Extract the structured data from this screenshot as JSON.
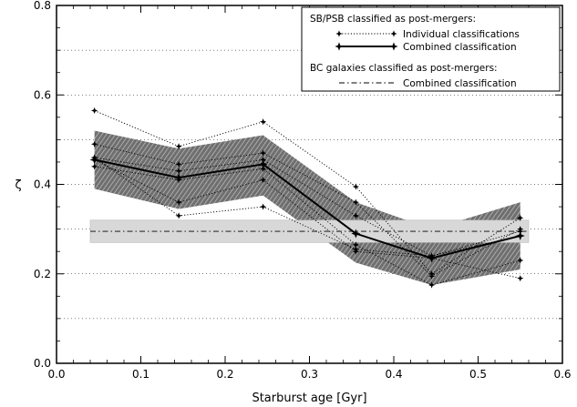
{
  "chart_data": {
    "type": "line",
    "title": "",
    "xlabel": "Starburst age [Gyr]",
    "ylabel": "ζ",
    "xlim": [
      0.0,
      0.6
    ],
    "ylim": [
      0.0,
      0.8
    ],
    "x_ticks": [
      "0.0",
      "0.1",
      "0.2",
      "0.3",
      "0.4",
      "0.5",
      "0.6"
    ],
    "y_ticks": [
      "0.0",
      "0.2",
      "0.4",
      "0.6",
      "0.8"
    ],
    "grid": "horizontal dotted",
    "legend_placement": "top-right",
    "legend": {
      "heading_sb": "SB/PSB classified as post-mergers:",
      "entry_individual": "Individual classifications",
      "entry_combined": "Combined classification",
      "heading_bc": "BC galaxies classified as post-mergers:",
      "entry_bc": "Combined classification"
    },
    "x": [
      0.045,
      0.145,
      0.245,
      0.355,
      0.445,
      0.55
    ],
    "individual_series": [
      [
        0.565,
        0.485,
        0.54,
        0.395,
        0.2,
        0.325
      ],
      [
        0.49,
        0.445,
        0.47,
        0.36,
        0.195,
        0.3
      ],
      [
        0.46,
        0.43,
        0.455,
        0.33,
        0.24,
        0.285
      ],
      [
        0.44,
        0.41,
        0.435,
        0.265,
        0.175,
        0.23
      ],
      [
        0.455,
        0.36,
        0.41,
        0.25,
        0.235,
        0.19
      ],
      [
        0.46,
        0.33,
        0.35,
        0.255,
        0.24,
        0.295
      ]
    ],
    "combined": [
      0.455,
      0.415,
      0.445,
      0.29,
      0.235,
      0.285
    ],
    "combined_band_upper": [
      0.52,
      0.48,
      0.51,
      0.36,
      0.3,
      0.36
    ],
    "combined_band_lower": [
      0.39,
      0.345,
      0.375,
      0.225,
      0.175,
      0.21
    ],
    "bc_combined": 0.295,
    "bc_band": [
      0.27,
      0.32
    ],
    "colors": {
      "band_fill": "#8a8a8a",
      "bc_band_fill": "#d8d8d8",
      "line": "#000000"
    }
  }
}
